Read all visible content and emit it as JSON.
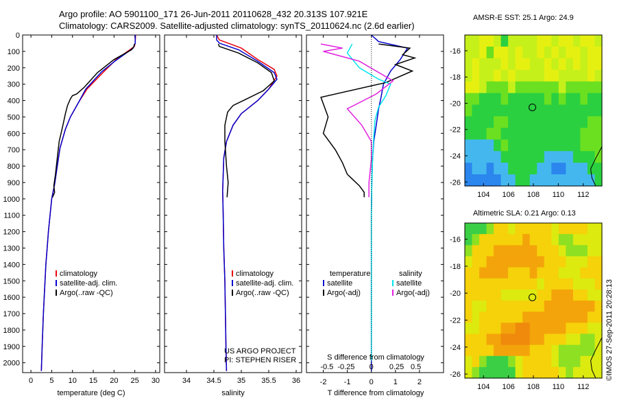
{
  "header": {
    "line1": "Argo profile: AO 5901100_171 26-Jun-2011 20110628_432 20.313S 107.921E",
    "line2": "Climatology: CARS2009. Satellite-adjusted climatology: synTS_20110624.nc (2.6d earlier)"
  },
  "side_text": "©IMOS 27-Sep-2011 20:28:13",
  "project_note": {
    "line1": "US ARGO PROJECT",
    "line2": "PI: STEPHEN RISER"
  },
  "colors": {
    "climatology": "#e8000b",
    "satellite": "#0000cc",
    "argo": "#000000",
    "sal_satellite": "#00e5ee",
    "sal_argo": "#e020e0"
  },
  "chart_data": [
    {
      "type": "line",
      "id": "temperature",
      "xlabel": "temperature (deg C)",
      "ylabel": "",
      "xlim": [
        -2,
        31
      ],
      "ylim": [
        2060,
        0
      ],
      "xticks": [
        0,
        5,
        10,
        15,
        20,
        25,
        30
      ],
      "yticks": [
        0,
        100,
        200,
        300,
        400,
        500,
        600,
        700,
        800,
        900,
        1000,
        1100,
        1200,
        1300,
        1400,
        1500,
        1600,
        1700,
        1800,
        1900,
        2000
      ],
      "legend": [
        "climatology",
        "satellite-adj. clim.",
        "Argo(..raw -QC)"
      ],
      "legend_position": "lower-center",
      "series": [
        {
          "name": "climatology",
          "color": "#e8000b",
          "x": [
            25.2,
            25.1,
            24.9,
            20.5,
            17.5,
            13.5,
            11.5,
            9.5,
            8.3,
            7.0,
            6.4,
            5.7,
            5.0,
            4.6,
            4.2,
            3.9,
            3.6,
            3.4,
            3.2,
            3.0,
            2.85,
            2.7,
            2.5
          ],
          "y": [
            0,
            50,
            70,
            150,
            225,
            330,
            410,
            500,
            575,
            690,
            790,
            910,
            1000,
            1100,
            1200,
            1300,
            1400,
            1500,
            1600,
            1700,
            1800,
            1900,
            2050
          ]
        },
        {
          "name": "satellite-adj. clim.",
          "color": "#0000cc",
          "x": [
            25.1,
            25.1,
            24.6,
            20.2,
            17.0,
            13.2,
            11.5,
            9.5,
            8.3,
            7.0,
            6.4,
            5.7,
            5.0,
            4.6,
            4.2,
            3.9,
            3.6,
            3.4,
            3.2,
            3.0,
            2.85,
            2.7,
            2.5
          ],
          "y": [
            0,
            50,
            80,
            160,
            225,
            330,
            410,
            500,
            575,
            690,
            790,
            910,
            1000,
            1100,
            1200,
            1300,
            1400,
            1500,
            1600,
            1700,
            1800,
            1900,
            2050
          ]
        },
        {
          "name": "Argo(..raw -QC)",
          "color": "#000000",
          "x": [
            24.9,
            24.8,
            24.2,
            20.0,
            16.0,
            12.8,
            11.0,
            10.0,
            9.5,
            8.8,
            8.3,
            7.7,
            6.8,
            6.3,
            5.9,
            5.5,
            5.7,
            5.2
          ],
          "y": [
            55,
            70,
            90,
            150,
            230,
            320,
            360,
            370,
            390,
            430,
            480,
            550,
            650,
            760,
            850,
            920,
            960,
            990
          ]
        }
      ]
    },
    {
      "type": "line",
      "id": "salinity",
      "xlabel": "salinity",
      "ylabel": "",
      "xlim": [
        33.6,
        36.1
      ],
      "ylim": [
        2060,
        0
      ],
      "xticks": [
        34,
        34.5,
        35,
        35.5,
        36
      ],
      "legend": [
        "climatology",
        "satellite-adj. clim.",
        "Argo(..raw -QC)"
      ],
      "legend_position": "lower-center",
      "series": [
        {
          "name": "climatology",
          "color": "#e8000b",
          "x": [
            34.55,
            34.6,
            35.0,
            35.3,
            35.6,
            35.65,
            35.5,
            35.3,
            35.0,
            34.85,
            34.73,
            34.68,
            34.67,
            34.66,
            34.67,
            34.68,
            34.7,
            34.71,
            34.72,
            34.73
          ],
          "y": [
            0,
            30,
            80,
            150,
            210,
            250,
            330,
            400,
            480,
            550,
            650,
            750,
            850,
            950,
            1100,
            1300,
            1500,
            1700,
            1900,
            2050
          ]
        },
        {
          "name": "satellite-adj. clim.",
          "color": "#0000cc",
          "x": [
            34.55,
            34.55,
            34.6,
            34.95,
            35.3,
            35.6,
            35.65,
            35.5,
            35.3,
            35.0,
            34.85,
            34.73,
            34.68,
            34.67,
            34.66,
            34.67,
            34.68,
            34.7,
            34.71,
            34.72,
            34.73
          ],
          "y": [
            0,
            30,
            50,
            90,
            160,
            230,
            270,
            330,
            400,
            480,
            550,
            650,
            750,
            850,
            950,
            1100,
            1300,
            1500,
            1700,
            1900,
            2050
          ]
        },
        {
          "name": "Argo(..raw -QC)",
          "color": "#000000",
          "x": [
            34.58,
            34.6,
            34.95,
            35.3,
            35.55,
            35.6,
            35.4,
            35.1,
            34.85,
            34.75,
            34.7,
            34.7,
            34.73,
            34.76,
            34.74
          ],
          "y": [
            55,
            70,
            110,
            170,
            230,
            280,
            340,
            390,
            430,
            470,
            550,
            650,
            800,
            900,
            990
          ]
        }
      ]
    },
    {
      "type": "line",
      "id": "differences",
      "xlabel": "T difference from climatology",
      "title_bottom": "S difference from climatology",
      "xlim": [
        -2.7,
        3.0
      ],
      "ylim": [
        2060,
        0
      ],
      "xticks": [
        -2,
        -1,
        0,
        1,
        2
      ],
      "s_ticks": [
        "-0.5",
        "-0.25",
        "0",
        "0.25",
        "0.5"
      ],
      "legend_temperature": {
        "title": "temperature",
        "items": [
          "satellite",
          "Argo(-adj)"
        ]
      },
      "legend_salinity": {
        "title": "salinity",
        "items": [
          "satellite",
          "Argo(-adj)"
        ]
      },
      "legend_position": "lower-center",
      "series": [
        {
          "name": "temperature satellite",
          "color": "#0000cc",
          "x": [
            0.0,
            0.3,
            1.5,
            1.2,
            0.8,
            0.5,
            0.4,
            0.3,
            0.2,
            0.1,
            0.05,
            0.02,
            0.0,
            0.0,
            0.0,
            0.0,
            0.0
          ],
          "y": [
            0,
            40,
            80,
            150,
            220,
            300,
            380,
            450,
            550,
            650,
            750,
            900,
            1100,
            1400,
            1700,
            1900,
            2050
          ]
        },
        {
          "name": "temperature Argo(-adj)",
          "color": "#000000",
          "x": [
            0.3,
            1.6,
            1.3,
            1.8,
            1.0,
            1.7,
            0.6,
            -2.1,
            -1.8,
            -2.0,
            -1.5,
            -1.2,
            -1.0,
            -0.5,
            -0.3,
            -0.3
          ],
          "y": [
            55,
            80,
            120,
            140,
            180,
            220,
            290,
            380,
            500,
            600,
            700,
            780,
            850,
            920,
            960,
            990
          ]
        },
        {
          "name": "salinity satellite",
          "color": "#00e5ee",
          "x": [
            -0.8,
            -1.0,
            -0.5,
            0.3,
            0.8,
            0.6,
            0.3,
            0.15,
            0.1,
            0.05,
            0.02,
            0.0,
            0.0,
            0.0,
            0.0
          ],
          "y": [
            55,
            110,
            200,
            270,
            300,
            370,
            440,
            520,
            620,
            750,
            900,
            1100,
            1400,
            1700,
            1990
          ]
        },
        {
          "name": "salinity Argo(-adj)",
          "color": "#e020e0",
          "x": [
            -2.1,
            -1.2,
            -2.0,
            -0.5,
            0.9,
            0.2,
            -1.0,
            -0.4,
            0.0,
            0.0,
            -0.1,
            -0.1
          ],
          "y": [
            55,
            80,
            100,
            160,
            280,
            360,
            450,
            550,
            650,
            760,
            900,
            990
          ]
        }
      ]
    },
    {
      "type": "heatmap",
      "id": "sst_map",
      "title": "AMSR-E SST: 25.1  Argo: 24.9",
      "xlim": [
        102.5,
        113.5
      ],
      "ylim": [
        -26.3,
        -14.8
      ],
      "xticks": [
        104,
        106,
        108,
        110,
        112
      ],
      "yticks": [
        -16,
        -18,
        -20,
        -22,
        -24,
        -26
      ],
      "marker": {
        "lon": 107.921,
        "lat": -20.313
      },
      "grid_rows": [
        "ccddcaccccddcddcddc",
        "ccdbddcdccdcdcddcdd",
        "cdcccdcddccdcdcdcdd",
        "cdccdcdccccddccccdc",
        "ddcbbbcbbbbbbcbbbbb",
        "bbaaabaaaaababaabaa",
        "baaaaaaaaaaaaaaaaaa",
        "aaaabbaaaaaaaaaaabb",
        "aaabbaaaaaaaaaaabbb",
        "iiiiabaaaaaaaaaabbb",
        "iiiiiaaaaaaiiiiaaab",
        "jiijiiaaaaiijjiiiaa",
        "jjjjjiiaaiiiiiiiiia"
      ],
      "palette": {
        "a": "#2ad040",
        "b": "#6be020",
        "c": "#c6f01a",
        "d": "#e6f010",
        "i": "#44b8ee",
        "j": "#2b86ee"
      }
    },
    {
      "type": "heatmap",
      "id": "sla_map",
      "title": "Altimetric SLA: 0.21  Argo: 0.13",
      "xlim": [
        102.5,
        113.5
      ],
      "ylim": [
        -26.3,
        -14.8
      ],
      "xticks": [
        104,
        106,
        108,
        110,
        112
      ],
      "yticks": [
        -16,
        -18,
        -20,
        -22,
        -24,
        -26
      ],
      "marker": {
        "lon": 107.921,
        "lat": -20.313
      },
      "grid_rows": [
        "aaabddcdddddcddddcc",
        "abddddddedddcbbcccc",
        "bdddeeeeeedddcbbbcc",
        "cddeeeeeeeedddcccdd",
        "ddeeeedddedddcccddd",
        "ddddddddddcddddcccd",
        "dddddcccccddeeeddcc",
        "dccddddddddeeeeeeed",
        "dcddddddeeeeeeeeedd",
        "ccdddeeffeeeeedddcc",
        "dddeeffffeedddccbbc",
        "ddddeeeeedddcbbbbbc",
        "cdbaaabcddddcbbbccc",
        "cbaaaaacdddddcbcccc"
      ],
      "palette": {
        "a": "#3bcf45",
        "b": "#8ee023",
        "c": "#dcea10",
        "d": "#f5d20a",
        "e": "#f4a40b",
        "f": "#ef8a0c"
      }
    }
  ]
}
